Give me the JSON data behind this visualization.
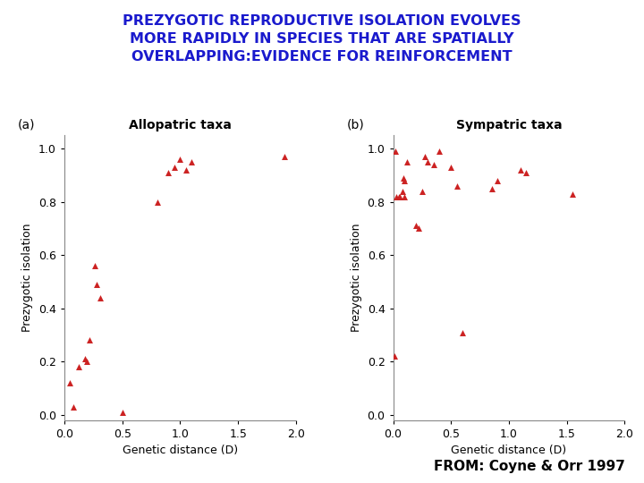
{
  "title_line1": "PREZYGOTIC REPRODUCTIVE ISOLATION EVOLVES",
  "title_line2": "MORE RAPIDLY IN SPECIES THAT ARE SPATIALLY",
  "title_line3": "OVERLAPPING:EVIDENCE FOR REINFORCEMENT",
  "title_color": "#1a1acd",
  "title_fontsize": 11.5,
  "citation": "FROM: Coyne & Orr 1997",
  "citation_fontsize": 11,
  "marker_color": "#cc2222",
  "marker_size": 5,
  "allopatric": {
    "label": "Allopatric taxa",
    "x": [
      0.05,
      0.08,
      0.12,
      0.18,
      0.19,
      0.22,
      0.26,
      0.28,
      0.31,
      0.5,
      0.8,
      0.9,
      0.95,
      1.0,
      1.05,
      1.1,
      1.9
    ],
    "y": [
      0.12,
      0.03,
      0.18,
      0.21,
      0.2,
      0.28,
      0.56,
      0.49,
      0.44,
      0.01,
      0.8,
      0.91,
      0.93,
      0.96,
      0.92,
      0.95,
      0.97
    ]
  },
  "sympatric": {
    "label": "Sympatric taxa",
    "x": [
      0.01,
      0.02,
      0.03,
      0.05,
      0.06,
      0.08,
      0.09,
      0.1,
      0.1,
      0.12,
      0.2,
      0.22,
      0.25,
      0.27,
      0.3,
      0.35,
      0.4,
      0.5,
      0.55,
      0.6,
      0.85,
      0.9,
      1.1,
      1.15,
      1.55
    ],
    "y": [
      0.22,
      0.99,
      0.82,
      0.82,
      0.82,
      0.84,
      0.89,
      0.88,
      0.82,
      0.95,
      0.71,
      0.7,
      0.84,
      0.97,
      0.95,
      0.94,
      0.99,
      0.93,
      0.86,
      0.31,
      0.85,
      0.88,
      0.92,
      0.91,
      0.83
    ]
  },
  "xlabel": "Genetic distance (D)",
  "ylabel": "Prezygotic isolation",
  "xlim": [
    0,
    2
  ],
  "ylim": [
    -0.02,
    1.05
  ],
  "yticks": [
    0,
    0.2,
    0.4,
    0.6,
    0.8,
    1
  ],
  "xticks": [
    0,
    0.5,
    1.0,
    1.5,
    2.0
  ]
}
